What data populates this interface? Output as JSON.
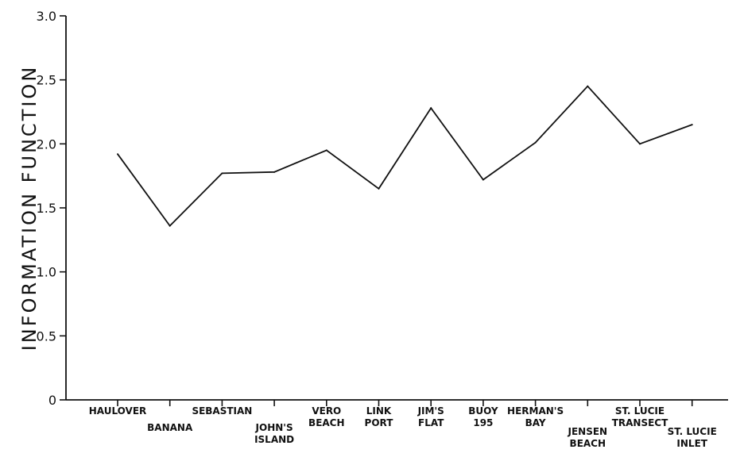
{
  "chart_data": {
    "type": "line",
    "title": "",
    "xlabel": "",
    "ylabel": "INFORMATION FUNCTION",
    "ylim": [
      0,
      3.0
    ],
    "yticks": [
      "0",
      "0.5",
      "1.0",
      "1.5",
      "2.0",
      "2.5",
      "3.0"
    ],
    "grid": false,
    "categories": [
      "HAULOVER",
      "BANANA",
      "SEBASTIAN",
      "JOHN'S ISLAND",
      "VERO BEACH",
      "LINK PORT",
      "JIM'S FLAT",
      "BUOY 195",
      "HERMAN'S BAY",
      "JENSEN BEACH",
      "ST. LUCIE TRANSECT",
      "ST. LUCIE INLET"
    ],
    "category_lines": [
      [
        "HAULOVER"
      ],
      [
        "BANANA"
      ],
      [
        "SEBASTIAN"
      ],
      [
        "JOHN'S",
        "ISLAND"
      ],
      [
        "VERO",
        "BEACH"
      ],
      [
        "LINK",
        "PORT"
      ],
      [
        "JIM'S",
        "FLAT"
      ],
      [
        "BUOY",
        "195"
      ],
      [
        "HERMAN'S",
        "BAY"
      ],
      [
        "JENSEN",
        "BEACH"
      ],
      [
        "ST. LUCIE",
        "TRANSECT"
      ],
      [
        "ST. LUCIE",
        "INLET"
      ]
    ],
    "values": [
      1.92,
      1.36,
      1.77,
      1.78,
      1.95,
      1.65,
      2.28,
      1.72,
      2.01,
      2.45,
      2.0,
      2.15
    ],
    "line_color": "#111111"
  }
}
